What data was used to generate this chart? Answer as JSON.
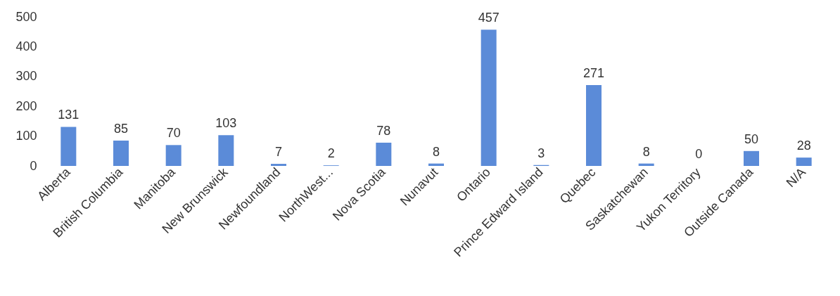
{
  "chart_data": {
    "type": "bar",
    "categories": [
      "Alberta",
      "British Columbia",
      "Manitoba",
      "New Brunswick",
      "Newfoundland",
      "NorthWest...",
      "Nova Scotia",
      "Nunavut",
      "Ontario",
      "Prince Edward Island",
      "Quebec",
      "Saskatchewan",
      "Yukon Territory",
      "Outside Canada",
      "N/A"
    ],
    "values": [
      131,
      85,
      70,
      103,
      7,
      2,
      78,
      8,
      457,
      3,
      271,
      8,
      0,
      50,
      28
    ],
    "color": "#5b8bd8",
    "ylim": [
      0,
      500
    ],
    "yticks": [
      0,
      100,
      200,
      300,
      400,
      500
    ],
    "data_labels": true,
    "grid": false
  }
}
